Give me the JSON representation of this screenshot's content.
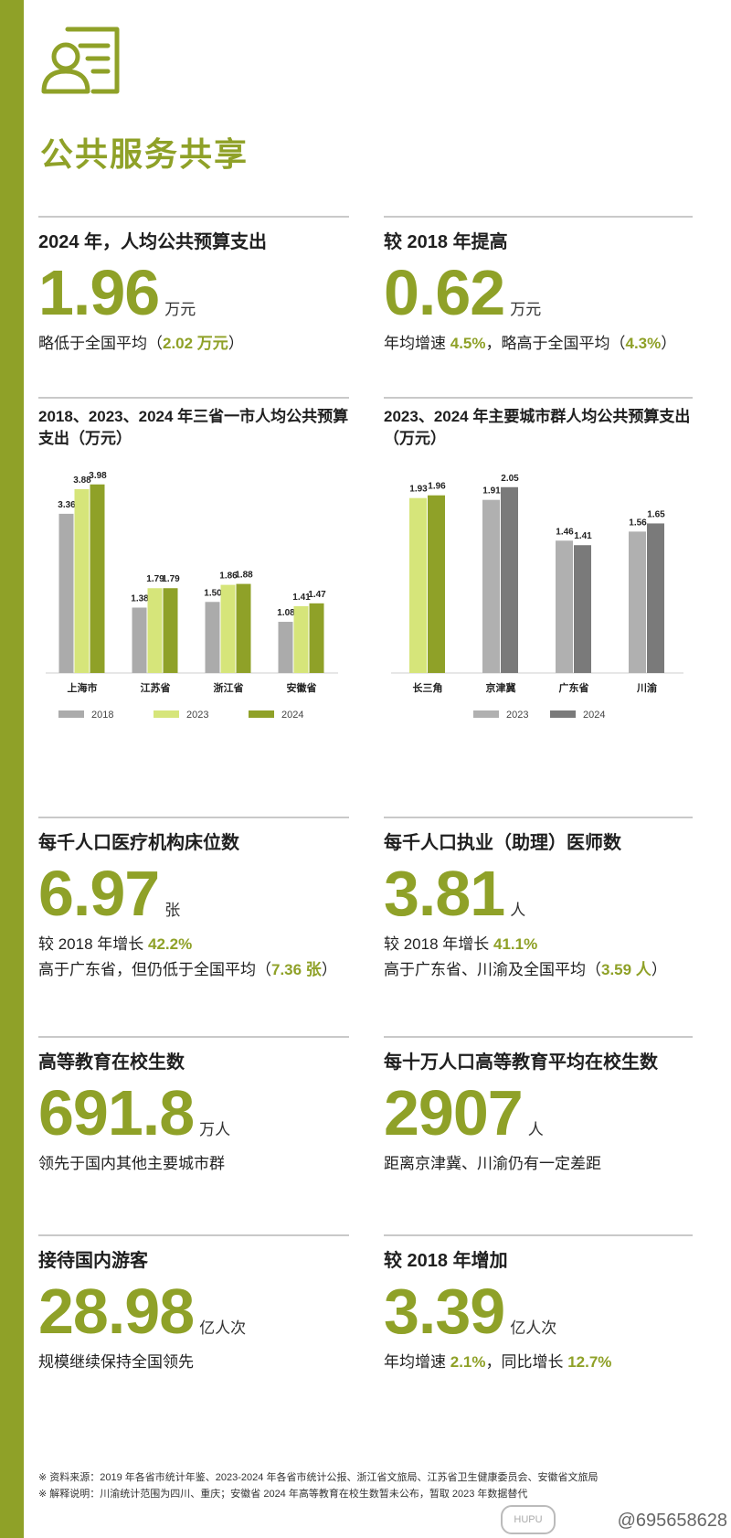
{
  "page": {
    "title": "公共服务共享"
  },
  "stats": [
    {
      "label": "2024 年，人均公共预算支出",
      "value": "1.96",
      "unit": "万元",
      "notes": [
        {
          "parts": [
            "略低于全国平均（",
            "2.02 万元",
            "）"
          ]
        }
      ]
    },
    {
      "label": "较 2018 年提高",
      "value": "0.62",
      "unit": "万元",
      "notes": [
        {
          "parts": [
            "年均增速 ",
            "4.5%",
            "，略高于全国平均（",
            "4.3%",
            "）"
          ]
        }
      ]
    },
    {
      "label": "每千人口医疗机构床位数",
      "value": "6.97",
      "unit": "张",
      "notes": [
        {
          "parts": [
            "较 2018 年增长 ",
            "42.2%"
          ]
        },
        {
          "parts": [
            "高于广东省，但仍低于全国平均（",
            "7.36 张",
            "）"
          ]
        }
      ]
    },
    {
      "label": "每千人口执业（助理）医师数",
      "value": "3.81",
      "unit": "人",
      "notes": [
        {
          "parts": [
            "较 2018 年增长 ",
            "41.1%"
          ]
        },
        {
          "parts": [
            "高于广东省、川渝及全国平均（",
            "3.59 人",
            "）"
          ]
        }
      ]
    },
    {
      "label": "高等教育在校生数",
      "value": "691.8",
      "unit": "万人",
      "notes": [
        {
          "parts": [
            "领先于国内其他主要城市群"
          ]
        }
      ]
    },
    {
      "label": "每十万人口高等教育平均在校生数",
      "value": "2907",
      "unit": "人",
      "notes": [
        {
          "parts": [
            "距离京津冀、川渝仍有一定差距"
          ]
        }
      ]
    },
    {
      "label": "接待国内游客",
      "value": "28.98",
      "unit": "亿人次",
      "notes": [
        {
          "parts": [
            "规模继续保持全国领先"
          ]
        }
      ]
    },
    {
      "label": "较 2018 年增加",
      "value": "3.39",
      "unit": "亿人次",
      "notes": [
        {
          "parts": [
            "年均增速 ",
            "2.1%",
            "，同比增长 ",
            "12.7%"
          ]
        }
      ]
    }
  ],
  "chart_data": [
    {
      "type": "bar",
      "title": "2018、2023、2024 年三省一市人均公共预算支出（万元）",
      "categories": [
        "上海市",
        "江苏省",
        "浙江省",
        "安徽省"
      ],
      "series": [
        {
          "name": "2018",
          "color": "#ababab",
          "values": [
            3.36,
            1.38,
            1.5,
            1.08
          ]
        },
        {
          "name": "2023",
          "color": "#d6e57a",
          "values": [
            3.88,
            1.79,
            1.86,
            1.41
          ]
        },
        {
          "name": "2024",
          "color": "#8fa128",
          "values": [
            3.98,
            1.79,
            1.88,
            1.47
          ]
        }
      ],
      "ylim": [
        0,
        4.4
      ],
      "legend": "bottom"
    },
    {
      "type": "bar",
      "title": "2023、2024 年主要城市群人均公共预算支出（万元）",
      "categories": [
        "长三角",
        "京津冀",
        "广东省",
        "川渝"
      ],
      "series": [
        {
          "name": "2023",
          "colors": [
            "#d6e57a",
            "#b0b0b0",
            "#b0b0b0",
            "#b0b0b0"
          ],
          "values": [
            1.93,
            1.91,
            1.46,
            1.56
          ]
        },
        {
          "name": "2024",
          "colors": [
            "#8fa128",
            "#7a7a7a",
            "#7a7a7a",
            "#7a7a7a"
          ],
          "values": [
            1.96,
            2.05,
            1.41,
            1.65
          ]
        }
      ],
      "ylim": [
        0,
        2.3
      ],
      "legend": "bottom"
    }
  ],
  "footer": {
    "line1": "※ 资料来源：2019 年各省市统计年鉴、2023-2024 年各省市统计公报、浙江省文旅局、江苏省卫生健康委员会、安徽省文旅局",
    "line2": "※ 解释说明：川渝统计范围为四川、重庆；安徽省 2024 年高等教育在校生数暂未公布，暂取 2023 年数据替代"
  },
  "watermark": {
    "handle": "@695658628",
    "badge": "HUPU"
  }
}
